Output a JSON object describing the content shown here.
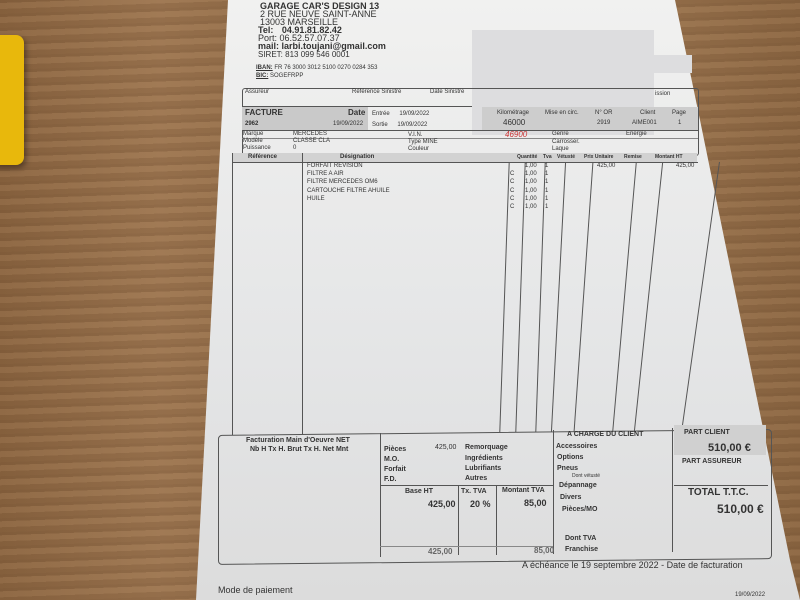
{
  "garage": {
    "name": "GARAGE CAR'S DESIGN 13",
    "address1": "2 RUE NEUVE SAINT-ANNE",
    "address2": "13003 MARSEILLE",
    "tel_label": "Tel:",
    "tel": "04.91.81.82.42",
    "port_label": "Port:",
    "port": "06.52.57.07.37",
    "mail_label": "mail:",
    "mail": "larbi.toujani@gmail.com",
    "siret_label": "SIRET:",
    "siret": "813 099 546 0001",
    "iban_label": "IBAN:",
    "iban": "FR 76 3000 3012 5100 0270 0284 353",
    "bic_label": "BIC:",
    "bic": "SOGEFRPP"
  },
  "header": {
    "assureur": "Assureur",
    "ref_sinistre": "Référence Sinistre",
    "date_sinistre": "Date Sinistre",
    "mission": "ission",
    "facture_label": "FACTURE",
    "facture_no": "2962",
    "date_label": "Date",
    "date": "19/09/2022",
    "entree_label": "Entrée",
    "entree": "19/09/2022",
    "sortie_label": "Sortie",
    "sortie": "19/09/2022",
    "km_label": "Kilométrage",
    "km": "46000",
    "km_handwritten": "46900",
    "mise_label": "Mise en circ.",
    "or_label": "N° OR",
    "or": "2919",
    "client_label": "Client",
    "client": "AIME001",
    "page_label": "Page",
    "page": "1"
  },
  "vehicle": {
    "marque_label": "Marque",
    "marque": "MERCEDES",
    "modele_label": "Modèle",
    "modele": "CLASSE CLA",
    "puissance_label": "Puissance",
    "puissance": "0",
    "vin_label": "V.I.N.",
    "type_label": "Type MINE",
    "couleur_label": "Couleur",
    "genre_label": "Genre",
    "carrosser_label": "Carrosser.",
    "laque_label": "Laque",
    "energie_label": "Energie"
  },
  "columns": [
    "Référence",
    "Désignation",
    "Quantité",
    "Tva",
    "Vétusté",
    "Prix Unitaire",
    "Remise",
    "Montant HT"
  ],
  "items": [
    {
      "designation": "FORFAIT REVISION",
      "code": "",
      "qty": "1,00",
      "tva": "1",
      "pu": "425,00",
      "montant": "425,00"
    },
    {
      "designation": "FILTRE A AIR",
      "code": "C",
      "qty": "1,00",
      "tva": "1",
      "pu": "",
      "montant": ""
    },
    {
      "designation": "FILTRE MERCEDES OM6",
      "code": "C",
      "qty": "1,00",
      "tva": "1",
      "pu": "",
      "montant": ""
    },
    {
      "designation": "CARTOUCHE FILTRE  AHUILE",
      "code": "C",
      "qty": "1,00",
      "tva": "1",
      "pu": "",
      "montant": ""
    },
    {
      "designation": "HUILE",
      "code": "C",
      "qty": "1,00",
      "tva": "1",
      "pu": "",
      "montant": ""
    },
    {
      "designation": "",
      "code": "C",
      "qty": "1,00",
      "tva": "1",
      "pu": "",
      "montant": ""
    }
  ],
  "footer": {
    "mo_title": "Facturation Main d'Oeuvre NET",
    "mo_cols": "Nb H  Tx H. Brut  Tx H. Net   Mnt",
    "pieces": "Pièces",
    "pieces_val": "425,00",
    "mo": "M.O.",
    "forfait": "Forfait",
    "fd": "F.D.",
    "remorquage": "Remorquage",
    "ingredients": "Ingrédients",
    "lubrifiants": "Lubrifiants",
    "autres": "Autres",
    "base_ht_label": "Base HT",
    "base_ht": "425,00",
    "tx_tva_label": "Tx. TVA",
    "tx_tva": "20 %",
    "montant_tva_label": "Montant TVA",
    "montant_tva": "85,00",
    "base_total": "425,00",
    "tva_total": "85,00",
    "charge_client": "A CHARGE DU CLIENT",
    "accessoires": "Accessoires",
    "options": "Options",
    "pneus": "Pneus",
    "dont_vetuste": "Dont vétusté",
    "depannage": "Dépannage",
    "divers": "Divers",
    "pieces_mo": "Pièces/MO",
    "dont_tva": "Dont TVA",
    "franchise": "Franchise",
    "part_client_label": "PART CLIENT",
    "part_client": "510,00 €",
    "part_assureur_label": "PART ASSUREUR",
    "total_label": "TOTAL T.T.C.",
    "total": "510,00 €",
    "echeance": "A échéance le 19 septembre 2022 - Date de facturation",
    "mode_paiement": "Mode de paiement",
    "bottom_date": "19/09/2022"
  }
}
